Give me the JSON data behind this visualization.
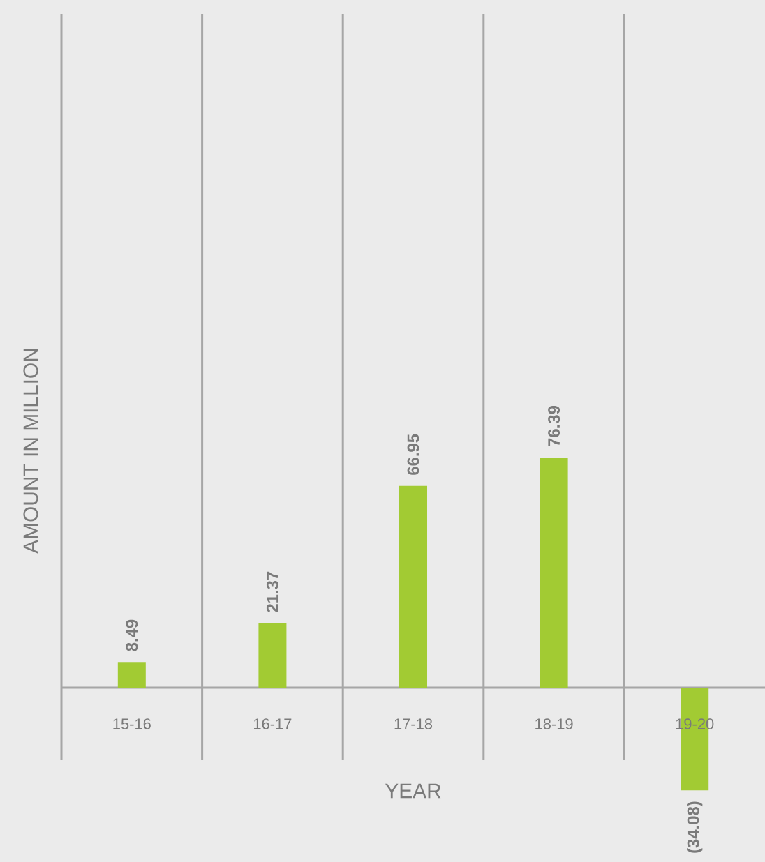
{
  "chart_data": {
    "type": "bar",
    "xlabel": "YEAR",
    "ylabel": "AMOUNT IN MILLION",
    "categories": [
      "15-16",
      "16-17",
      "17-18",
      "18-19",
      "19-20"
    ],
    "values": [
      8.49,
      21.37,
      66.95,
      76.39,
      -34.08
    ],
    "value_labels": [
      "8.49",
      "21.37",
      "66.95",
      "76.39",
      "(34.08)"
    ],
    "color": "#a2cb33"
  }
}
